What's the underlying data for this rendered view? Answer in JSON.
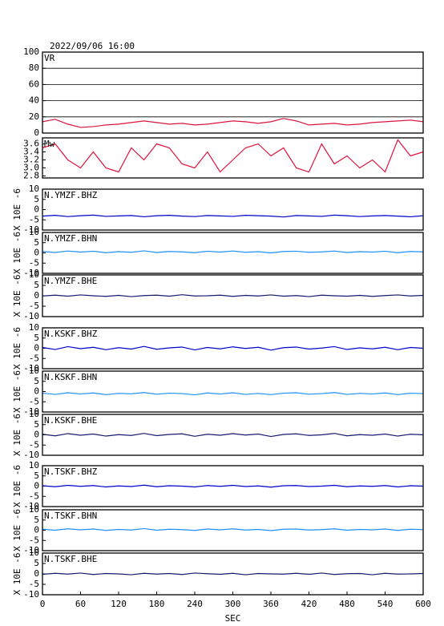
{
  "chart_data": [
    {
      "type": "line",
      "title": "2022/09/06 16:00",
      "x": [
        0,
        20,
        40,
        60,
        80,
        100,
        120,
        140,
        160,
        180,
        200,
        220,
        240,
        260,
        280,
        300,
        320,
        340,
        360,
        380,
        400,
        420,
        440,
        460,
        480,
        500,
        520,
        540,
        560,
        580,
        600
      ],
      "xlim": [
        0,
        600
      ],
      "ylim": [
        0,
        100
      ],
      "yticks": [
        0,
        20,
        40,
        60,
        80,
        100
      ],
      "grid": true,
      "series": [
        {
          "name": "VR",
          "color": "#dc143c",
          "values": [
            14,
            17,
            11,
            7,
            8,
            10,
            11,
            13,
            15,
            13,
            11,
            12,
            10,
            11,
            13,
            15,
            14,
            12,
            14,
            18,
            15,
            10,
            11,
            12,
            10,
            11,
            13,
            14,
            15,
            16,
            14
          ]
        }
      ]
    },
    {
      "type": "line",
      "x": [
        0,
        20,
        40,
        60,
        80,
        100,
        120,
        140,
        160,
        180,
        200,
        220,
        240,
        260,
        280,
        300,
        320,
        340,
        360,
        380,
        400,
        420,
        440,
        460,
        480,
        500,
        520,
        540,
        560,
        580,
        600
      ],
      "xlim": [
        0,
        600
      ],
      "ylim": [
        2.75,
        3.75
      ],
      "yticks": [
        2.8,
        {
          "value": 3,
          "label": "3.0"
        },
        3.2,
        3.4,
        3.6
      ],
      "series": [
        {
          "name": "Mw",
          "color": "#dc143c",
          "values": [
            3.5,
            3.6,
            3.2,
            3.0,
            3.4,
            3.0,
            2.9,
            3.5,
            3.2,
            3.6,
            3.5,
            3.1,
            3.0,
            3.4,
            2.9,
            3.2,
            3.5,
            3.6,
            3.3,
            3.5,
            3.0,
            2.9,
            3.6,
            3.1,
            3.3,
            3.0,
            3.2,
            2.9,
            3.7,
            3.3,
            3.4
          ]
        }
      ]
    },
    {
      "type": "line",
      "ylabel": "X 10E -6",
      "x": [
        0,
        20,
        40,
        60,
        80,
        100,
        120,
        140,
        160,
        180,
        200,
        220,
        240,
        260,
        280,
        300,
        320,
        340,
        360,
        380,
        400,
        420,
        440,
        460,
        480,
        500,
        520,
        540,
        560,
        580,
        600
      ],
      "xlim": [
        0,
        600
      ],
      "ylim": [
        -10,
        10
      ],
      "yticks": [
        -10,
        -5,
        0,
        5,
        10
      ],
      "series": [
        {
          "name": "N.YMZF.BHZ",
          "color": "#0000cc",
          "values": [
            -3.2,
            -2.8,
            -3.4,
            -3.0,
            -2.7,
            -3.3,
            -3.1,
            -2.9,
            -3.5,
            -3.0,
            -2.8,
            -3.2,
            -3.4,
            -2.9,
            -3.1,
            -3.3,
            -2.8,
            -3.0,
            -3.2,
            -3.6,
            -2.9,
            -3.1,
            -3.3,
            -2.7,
            -3.0,
            -3.4,
            -3.1,
            -2.9,
            -3.2,
            -3.5,
            -3.0
          ]
        }
      ]
    },
    {
      "type": "line",
      "ylabel": "X 10E -6",
      "x": [
        0,
        20,
        40,
        60,
        80,
        100,
        120,
        140,
        160,
        180,
        200,
        220,
        240,
        260,
        280,
        300,
        320,
        340,
        360,
        380,
        400,
        420,
        440,
        460,
        480,
        500,
        520,
        540,
        560,
        580,
        600
      ],
      "xlim": [
        0,
        600
      ],
      "ylim": [
        -10,
        10
      ],
      "yticks": [
        -10,
        -5,
        0,
        5,
        10
      ],
      "series": [
        {
          "name": "N.YMZF.BHN",
          "color": "#1e90ff",
          "values": [
            0.7,
            0.2,
            0.9,
            0.4,
            0.8,
            0.1,
            0.6,
            0.3,
            1.0,
            0.2,
            0.7,
            0.5,
            0.1,
            0.8,
            0.4,
            0.9,
            0.3,
            0.6,
            0.0,
            0.7,
            0.8,
            0.3,
            0.5,
            0.9,
            0.2,
            0.6,
            0.4,
            0.8,
            0.1,
            0.7,
            0.5
          ]
        }
      ]
    },
    {
      "type": "line",
      "ylabel": "X 10E -6",
      "x": [
        0,
        20,
        40,
        60,
        80,
        100,
        120,
        140,
        160,
        180,
        200,
        220,
        240,
        260,
        280,
        300,
        320,
        340,
        360,
        380,
        400,
        420,
        440,
        460,
        480,
        500,
        520,
        540,
        560,
        580,
        600
      ],
      "xlim": [
        0,
        600
      ],
      "ylim": [
        -10,
        10
      ],
      "yticks": [
        -10,
        -5,
        0,
        5,
        10
      ],
      "series": [
        {
          "name": "N.YMZF.BHE",
          "color": "#191970",
          "values": [
            -0.1,
            0.3,
            -0.2,
            0.4,
            0.0,
            -0.3,
            0.2,
            -0.4,
            0.1,
            0.3,
            -0.2,
            0.5,
            -0.1,
            0.0,
            0.3,
            -0.3,
            0.2,
            -0.1,
            0.4,
            -0.2,
            0.1,
            -0.4,
            0.3,
            0.0,
            -0.2,
            0.2,
            -0.3,
            0.1,
            0.4,
            -0.1,
            0.2
          ]
        }
      ]
    },
    {
      "type": "line",
      "ylabel": "X 10E -6",
      "x": [
        0,
        20,
        40,
        60,
        80,
        100,
        120,
        140,
        160,
        180,
        200,
        220,
        240,
        260,
        280,
        300,
        320,
        340,
        360,
        380,
        400,
        420,
        440,
        460,
        480,
        500,
        520,
        540,
        560,
        580,
        600
      ],
      "xlim": [
        0,
        600
      ],
      "ylim": [
        -10,
        10
      ],
      "yticks": [
        -10,
        -5,
        0,
        5,
        10
      ],
      "series": [
        {
          "name": "N.KSKF.BHZ",
          "color": "#0000cc",
          "values": [
            0.4,
            -0.6,
            0.8,
            -0.2,
            0.5,
            -0.7,
            0.3,
            -0.4,
            0.9,
            -0.5,
            0.2,
            0.6,
            -0.8,
            0.4,
            -0.3,
            0.7,
            -0.1,
            0.5,
            -0.9,
            0.3,
            0.6,
            -0.4,
            0.1,
            0.8,
            -0.6,
            0.2,
            -0.3,
            0.5,
            -0.7,
            0.4,
            0.0
          ]
        }
      ]
    },
    {
      "type": "line",
      "ylabel": "X 10E -6",
      "x": [
        0,
        20,
        40,
        60,
        80,
        100,
        120,
        140,
        160,
        180,
        200,
        220,
        240,
        260,
        280,
        300,
        320,
        340,
        360,
        380,
        400,
        420,
        440,
        460,
        480,
        500,
        520,
        540,
        560,
        580,
        600
      ],
      "xlim": [
        0,
        600
      ],
      "ylim": [
        -10,
        10
      ],
      "yticks": [
        -10,
        -5,
        0,
        5,
        10
      ],
      "series": [
        {
          "name": "N.KSKF.BHN",
          "color": "#1e90ff",
          "values": [
            -0.8,
            -1.4,
            -0.6,
            -1.2,
            -0.7,
            -1.5,
            -0.9,
            -1.1,
            -0.5,
            -1.3,
            -0.8,
            -1.0,
            -1.6,
            -0.7,
            -1.2,
            -0.6,
            -1.4,
            -0.9,
            -1.5,
            -0.8,
            -0.6,
            -1.3,
            -1.0,
            -0.5,
            -1.4,
            -0.9,
            -1.2,
            -0.7,
            -1.5,
            -0.8,
            -1.0
          ]
        }
      ]
    },
    {
      "type": "line",
      "ylabel": "X 10E -6",
      "x": [
        0,
        20,
        40,
        60,
        80,
        100,
        120,
        140,
        160,
        180,
        200,
        220,
        240,
        260,
        280,
        300,
        320,
        340,
        360,
        380,
        400,
        420,
        440,
        460,
        480,
        500,
        520,
        540,
        560,
        580,
        600
      ],
      "xlim": [
        0,
        600
      ],
      "ylim": [
        -10,
        10
      ],
      "yticks": [
        -10,
        -5,
        0,
        5,
        10
      ],
      "series": [
        {
          "name": "N.KSKF.BHE",
          "color": "#191970",
          "values": [
            0.3,
            -0.5,
            0.6,
            -0.2,
            0.4,
            -0.6,
            0.1,
            -0.3,
            0.7,
            -0.4,
            0.2,
            0.5,
            -0.7,
            0.3,
            -0.2,
            0.6,
            -0.1,
            0.4,
            -0.8,
            0.2,
            0.5,
            -0.3,
            0.0,
            0.7,
            -0.5,
            0.1,
            -0.2,
            0.4,
            -0.6,
            0.3,
            0.0
          ]
        }
      ]
    },
    {
      "type": "line",
      "ylabel": "X 10E -6",
      "x": [
        0,
        20,
        40,
        60,
        80,
        100,
        120,
        140,
        160,
        180,
        200,
        220,
        240,
        260,
        280,
        300,
        320,
        340,
        360,
        380,
        400,
        420,
        440,
        460,
        480,
        500,
        520,
        540,
        560,
        580,
        600
      ],
      "xlim": [
        0,
        600
      ],
      "ylim": [
        -10,
        10
      ],
      "yticks": [
        -10,
        -5,
        0,
        5,
        10
      ],
      "series": [
        {
          "name": "N.TSKF.BHZ",
          "color": "#0000cc",
          "values": [
            0.2,
            -0.3,
            0.4,
            -0.1,
            0.3,
            -0.4,
            0.1,
            -0.2,
            0.5,
            -0.3,
            0.2,
            0.0,
            -0.4,
            0.3,
            -0.1,
            0.4,
            -0.2,
            0.1,
            -0.5,
            0.2,
            0.3,
            -0.2,
            0.0,
            0.4,
            -0.3,
            0.1,
            -0.1,
            0.3,
            -0.4,
            0.2,
            0.0
          ]
        }
      ]
    },
    {
      "type": "line",
      "ylabel": "X 10E -6",
      "x": [
        0,
        20,
        40,
        60,
        80,
        100,
        120,
        140,
        160,
        180,
        200,
        220,
        240,
        260,
        280,
        300,
        320,
        340,
        360,
        380,
        400,
        420,
        440,
        460,
        480,
        500,
        520,
        540,
        560,
        580,
        600
      ],
      "xlim": [
        0,
        600
      ],
      "ylim": [
        -10,
        10
      ],
      "yticks": [
        -10,
        -5,
        0,
        5,
        10
      ],
      "series": [
        {
          "name": "N.TSKF.BHN",
          "color": "#1e90ff",
          "values": [
            0.5,
            0.0,
            0.7,
            0.2,
            0.6,
            -0.1,
            0.4,
            0.1,
            0.8,
            0.0,
            0.5,
            0.3,
            -0.1,
            0.6,
            0.2,
            0.7,
            0.1,
            0.4,
            -0.2,
            0.5,
            0.6,
            0.1,
            0.3,
            0.7,
            0.0,
            0.4,
            0.2,
            0.6,
            -0.1,
            0.5,
            0.3
          ]
        }
      ]
    },
    {
      "type": "line",
      "ylabel": "X 10E -6",
      "x": [
        0,
        20,
        40,
        60,
        80,
        100,
        120,
        140,
        160,
        180,
        200,
        220,
        240,
        260,
        280,
        300,
        320,
        340,
        360,
        380,
        400,
        420,
        440,
        460,
        480,
        500,
        520,
        540,
        560,
        580,
        600
      ],
      "xlim": [
        0,
        600
      ],
      "ylim": [
        -10,
        10
      ],
      "yticks": [
        -10,
        -5,
        0,
        5,
        10
      ],
      "xticks": [
        0,
        60,
        120,
        180,
        240,
        300,
        360,
        420,
        480,
        540,
        600
      ],
      "xlabel": "SEC",
      "series": [
        {
          "name": "N.TSKF.BHE",
          "color": "#191970",
          "values": [
            -0.2,
            0.3,
            -0.1,
            0.4,
            -0.3,
            0.2,
            0.0,
            -0.4,
            0.3,
            -0.1,
            0.2,
            -0.3,
            0.4,
            0.1,
            -0.2,
            0.3,
            -0.4,
            0.2,
            0.0,
            -0.1,
            0.3,
            -0.2,
            0.4,
            -0.3,
            0.1,
            0.2,
            -0.4,
            0.3,
            -0.1,
            0.0,
            0.2
          ]
        }
      ]
    }
  ]
}
